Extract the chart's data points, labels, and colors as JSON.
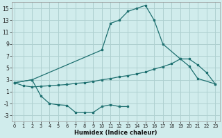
{
  "xlabel": "Humidex (Indice chaleur)",
  "background_color": "#d0ecec",
  "grid_color": "#aed0d0",
  "line_color": "#1e7070",
  "top_x": [
    0,
    2,
    10,
    11,
    12,
    13,
    14,
    15,
    16,
    17,
    19,
    20,
    21,
    23
  ],
  "top_y": [
    2.5,
    3.0,
    8.0,
    12.5,
    13.0,
    14.5,
    15.0,
    15.5,
    13.0,
    9.0,
    6.5,
    5.3,
    3.2,
    2.3
  ],
  "mid_x": [
    0,
    1,
    2,
    3,
    4,
    5,
    6,
    7,
    8,
    9,
    10,
    11,
    12,
    13,
    14,
    15,
    16,
    17,
    18,
    19,
    20,
    21,
    22,
    23
  ],
  "mid_y": [
    2.5,
    2.0,
    1.8,
    1.9,
    2.0,
    2.1,
    2.2,
    2.4,
    2.5,
    2.7,
    3.0,
    3.2,
    3.5,
    3.7,
    4.0,
    4.3,
    4.8,
    5.2,
    5.7,
    6.5,
    6.5,
    5.5,
    4.2,
    2.3
  ],
  "bot_x": [
    0,
    2,
    3,
    4,
    5,
    6,
    7,
    8,
    9,
    10,
    11,
    12,
    13
  ],
  "bot_y": [
    2.5,
    3.0,
    0.3,
    -1.0,
    -1.2,
    -1.3,
    -2.5,
    -2.5,
    -2.5,
    -1.5,
    -1.2,
    -1.5,
    -1.5
  ],
  "ylim": [
    -4,
    16
  ],
  "xlim_min": -0.3,
  "xlim_max": 23.5,
  "yticks": [
    -3,
    -1,
    1,
    3,
    5,
    7,
    9,
    11,
    13,
    15
  ],
  "xticks": [
    0,
    1,
    2,
    3,
    4,
    5,
    6,
    7,
    8,
    9,
    10,
    11,
    12,
    13,
    14,
    15,
    16,
    17,
    18,
    19,
    20,
    21,
    22,
    23
  ]
}
